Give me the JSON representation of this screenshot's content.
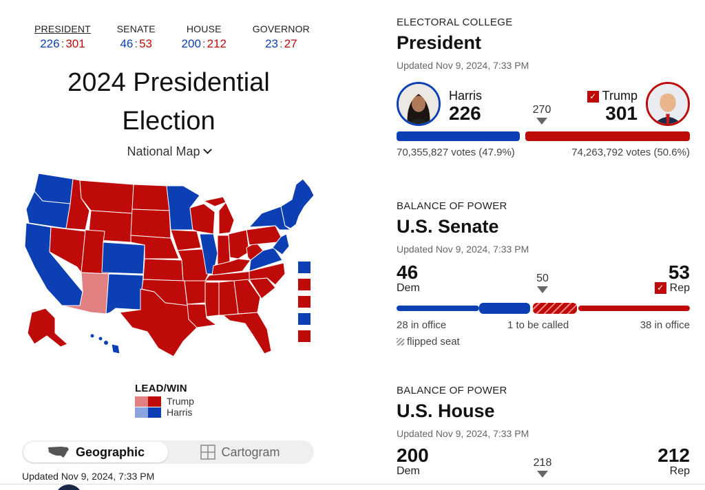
{
  "colors": {
    "dem": "#0b3fb3",
    "rep": "#bf0a0a",
    "dem_lead": "#8aa4e0",
    "rep_lead": "#e08080"
  },
  "race_tabs": [
    {
      "label": "PRESIDENT",
      "dem": "226",
      "rep": "301",
      "active": true
    },
    {
      "label": "SENATE",
      "dem": "46",
      "rep": "53",
      "active": false
    },
    {
      "label": "HOUSE",
      "dem": "200",
      "rep": "212",
      "active": false
    },
    {
      "label": "GOVERNOR",
      "dem": "23",
      "rep": "27",
      "active": false
    }
  ],
  "title_line1": "2024 Presidential",
  "title_line2": "Election",
  "map_select": {
    "label": "National Map",
    "icon": "chevron-down-icon"
  },
  "legend": {
    "title": "LEAD/WIN",
    "trump": "Trump",
    "harris": "Harris"
  },
  "view_toggle": {
    "geographic": "Geographic",
    "cartogram": "Cartogram",
    "selected": "Geographic"
  },
  "left_updated": "Updated Nov 9, 2024, 7:33 PM",
  "president": {
    "kicker": "ELECTORAL COLLEGE",
    "title": "President",
    "updated": "Updated Nov 9, 2024, 7:33 PM",
    "dem_name": "Harris",
    "dem_votes": "226",
    "rep_name": "Trump",
    "rep_votes": "301",
    "threshold": "270",
    "dem_popular": "70,355,827 votes (47.9%)",
    "rep_popular": "74,263,792 votes (50.6%)",
    "dem_fraction": 0.42,
    "rep_fraction": 0.56
  },
  "senate": {
    "kicker": "BALANCE OF POWER",
    "title": "U.S. Senate",
    "updated": "Updated Nov 9, 2024, 7:33 PM",
    "dem_seats": "46",
    "dem_label": "Dem",
    "rep_seats": "53",
    "rep_label": "Rep",
    "threshold": "50",
    "dem_in_office": "28 in office",
    "to_be_called": "1 to be called",
    "rep_in_office": "38 in office",
    "flipped_label": "flipped seat"
  },
  "house": {
    "kicker": "BALANCE OF POWER",
    "title": "U.S. House",
    "updated": "Updated Nov 9, 2024, 7:33 PM",
    "dem_seats": "200",
    "dem_label": "Dem",
    "rep_seats": "212",
    "rep_label": "Rep",
    "threshold": "218"
  }
}
